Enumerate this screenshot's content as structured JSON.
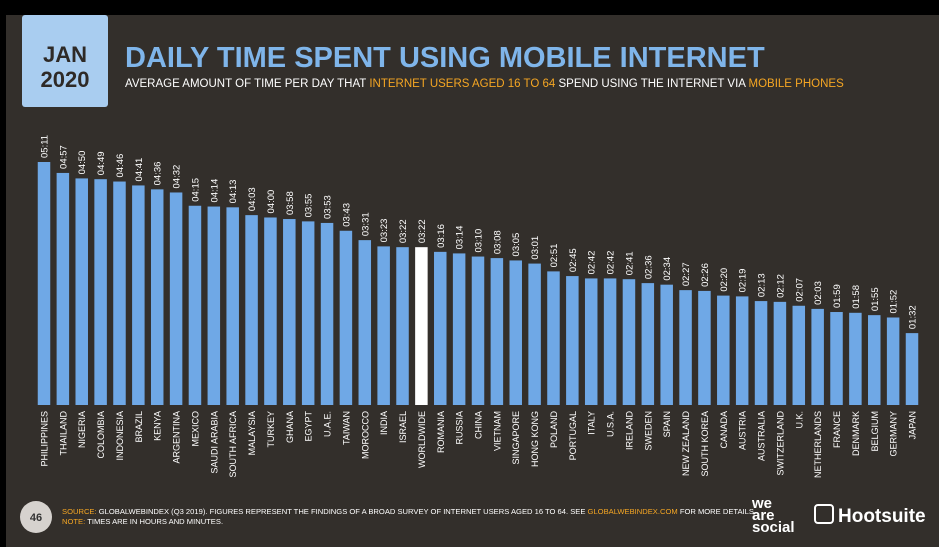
{
  "chart_data": {
    "type": "bar",
    "badge": {
      "month": "JAN",
      "year": "2020"
    },
    "title": "DAILY TIME SPENT USING MOBILE INTERNET",
    "subtitle_parts": [
      "AVERAGE AMOUNT OF TIME PER DAY THAT ",
      "INTERNET USERS AGED 16 TO 64",
      " SPEND USING THE INTERNET VIA ",
      "MOBILE PHONES"
    ],
    "categories": [
      "PHILIPPINES",
      "THAILAND",
      "NIGERIA",
      "COLOMBIA",
      "INDONESIA",
      "BRAZIL",
      "KENYA",
      "ARGENTINA",
      "MEXICO",
      "SAUDI ARABIA",
      "SOUTH AFRICA",
      "MALAYSIA",
      "TURKEY",
      "GHANA",
      "EGYPT",
      "U.A.E.",
      "TAIWAN",
      "MOROCCO",
      "INDIA",
      "ISRAEL",
      "WORLDWIDE",
      "ROMANIA",
      "RUSSIA",
      "CHINA",
      "VIETNAM",
      "SINGAPORE",
      "HONG KONG",
      "POLAND",
      "PORTUGAL",
      "ITALY",
      "U.S.A.",
      "IRELAND",
      "SWEDEN",
      "SPAIN",
      "NEW ZEALAND",
      "SOUTH KOREA",
      "CANADA",
      "AUSTRIA",
      "AUSTRALIA",
      "SWITZERLAND",
      "U.K.",
      "NETHERLANDS",
      "FRANCE",
      "DENMARK",
      "BELGIUM",
      "GERMANY",
      "JAPAN"
    ],
    "values": [
      311,
      297,
      290,
      289,
      286,
      281,
      276,
      272,
      255,
      254,
      253,
      243,
      240,
      238,
      235,
      233,
      223,
      211,
      203,
      202,
      202,
      196,
      194,
      190,
      188,
      185,
      181,
      171,
      165,
      162,
      162,
      161,
      156,
      154,
      147,
      146,
      140,
      139,
      133,
      132,
      127,
      123,
      119,
      118,
      115,
      112,
      92
    ],
    "value_labels": [
      "05:11",
      "04:57",
      "04:50",
      "04:49",
      "04:46",
      "04:41",
      "04:36",
      "04:32",
      "04:15",
      "04:14",
      "04:13",
      "04:03",
      "04:00",
      "03:58",
      "03:55",
      "03:53",
      "03:43",
      "03:31",
      "03:23",
      "03:22",
      "03:22",
      "03:16",
      "03:14",
      "03:10",
      "03:08",
      "03:05",
      "03:01",
      "02:51",
      "02:45",
      "02:42",
      "02:42",
      "02:41",
      "02:36",
      "02:34",
      "02:27",
      "02:26",
      "02:20",
      "02:19",
      "02:13",
      "02:12",
      "02:07",
      "02:03",
      "01:59",
      "01:58",
      "01:55",
      "01:52",
      "01:32"
    ],
    "colors": [
      "#6fa8e6",
      "#6fa8e6",
      "#6fa8e6",
      "#6fa8e6",
      "#6fa8e6",
      "#6fa8e6",
      "#6fa8e6",
      "#6fa8e6",
      "#6fa8e6",
      "#6fa8e6",
      "#6fa8e6",
      "#6fa8e6",
      "#6fa8e6",
      "#6fa8e6",
      "#6fa8e6",
      "#6fa8e6",
      "#6fa8e6",
      "#6fa8e6",
      "#6fa8e6",
      "#6fa8e6",
      "#ffffff",
      "#6fa8e6",
      "#6fa8e6",
      "#6fa8e6",
      "#6fa8e6",
      "#6fa8e6",
      "#6fa8e6",
      "#6fa8e6",
      "#6fa8e6",
      "#6fa8e6",
      "#6fa8e6",
      "#6fa8e6",
      "#6fa8e6",
      "#6fa8e6",
      "#6fa8e6",
      "#6fa8e6",
      "#6fa8e6",
      "#6fa8e6",
      "#6fa8e6",
      "#6fa8e6",
      "#6fa8e6",
      "#6fa8e6",
      "#6fa8e6",
      "#6fa8e6",
      "#6fa8e6",
      "#6fa8e6",
      "#6fa8e6"
    ],
    "source_parts": [
      "SOURCE:",
      " GLOBALWEBINDEX (Q3 2019). FIGURES REPRESENT THE FINDINGS OF A BROAD SURVEY OF INTERNET USERS AGED 16 TO 64. SEE ",
      "GLOBALWEBINDEX.COM",
      " FOR MORE DETAILS."
    ],
    "note_parts": [
      "NOTE:",
      " TIMES ARE IN HOURS AND MINUTES."
    ],
    "page_number": "46",
    "logos": {
      "we": "we",
      "are": "are",
      "social": "social",
      "hootsuite": "Hootsuite"
    }
  }
}
